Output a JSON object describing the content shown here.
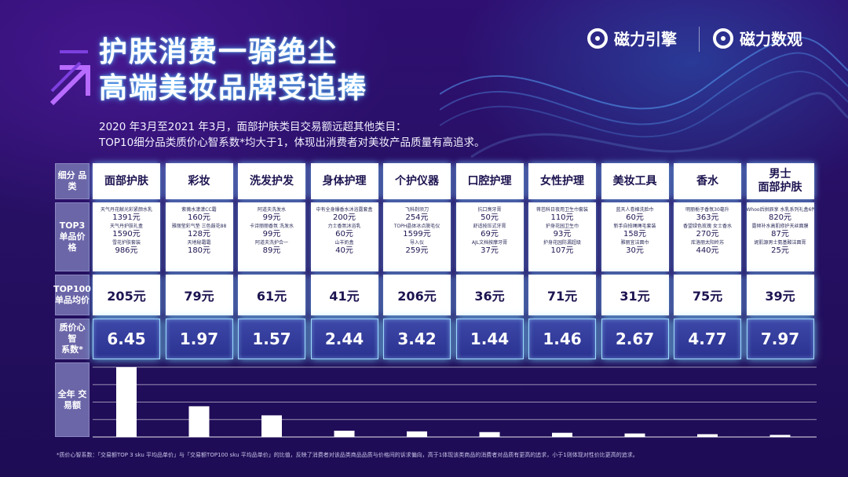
{
  "header": {
    "title_line1": "护肤消费一骑绝尘",
    "title_line2": "高端美妆品牌受追捧",
    "brand_a": "磁力引擎",
    "brand_b": "磁力数观",
    "subtitle_line1": "2020 年3月至2021 年3月，面部护肤类目交易额远超其他类目：",
    "subtitle_line2": "TOP10细分品类质价心智系数*均大于1，体现出消费者对美妆产品质量有高追求。"
  },
  "row_labels": {
    "category": "细分 品类",
    "top3": "TOP3\n单品价格",
    "top100": "TOP100\n单品均价",
    "index": "质价心智\n系数*",
    "trade": "全年 交\n易额"
  },
  "categories": [
    {
      "name": "面部护肤",
      "avg": "205元",
      "index": "6.45",
      "top3": [
        [
          "天气丹花献光彩紧颜水乳",
          "1391元"
        ],
        [
          "天气丹护肤礼盒",
          "1590元"
        ],
        [
          "雪花护肤套装",
          "986元"
        ]
      ]
    },
    {
      "name": "彩妆",
      "avg": "79元",
      "index": "1.97",
      "top3": [
        [
          "紫薇水漾漾CC霜",
          "160元"
        ],
        [
          "雅丽莹彩气垫 三色鼓花88",
          "128元"
        ],
        [
          "天地秘霜霜",
          "180元"
        ]
      ]
    },
    {
      "name": "洗发护发",
      "avg": "61元",
      "index": "1.57",
      "top3": [
        [
          "阿道夫洗发水",
          "99元"
        ],
        [
          "卡诗丽丽香氛 洗发水",
          "99元"
        ],
        [
          "阿道夫洗护合一",
          "89元"
        ]
      ]
    },
    {
      "name": "身体护理",
      "avg": "41元",
      "index": "2.44",
      "top3": [
        [
          "中有全身爆香水沐浴露套盒",
          "200元"
        ],
        [
          "力士香氛沐浴乳",
          "60元"
        ],
        [
          "山羊奶盒",
          "40元"
        ]
      ]
    },
    {
      "name": "个护仪器",
      "avg": "206元",
      "index": "3.42",
      "top3": [
        [
          "飞科剃须刀",
          "254元"
        ],
        [
          "TOPH晶体冰点脱毛仪",
          "1599元"
        ],
        [
          "导入仪",
          "259元"
        ]
      ]
    },
    {
      "name": "口腔护理",
      "avg": "36元",
      "index": "1.44",
      "top3": [
        [
          "抗口臭牙膏",
          "50元"
        ],
        [
          "舒适按压式牙膏",
          "69元"
        ],
        [
          "AJL文档按摩牙膏",
          "37元"
        ]
      ]
    },
    {
      "name": "女性护理",
      "avg": "71元",
      "index": "1.46",
      "top3": [
        [
          "蒋芭科日夜用卫生巾套装",
          "110元"
        ],
        [
          "护身花园卫生巾",
          "93元"
        ],
        [
          "护身花园防漏超级",
          "107元"
        ]
      ]
    },
    {
      "name": "美妆工具",
      "avg": "31元",
      "index": "2.67",
      "top3": [
        [
          "蓝天人卷棉洗脸巾",
          "60元"
        ],
        [
          "新手自拍绳绳毛套装",
          "158元"
        ],
        [
          "雅丽宜洁面巾",
          "30元"
        ]
      ]
    },
    {
      "name": "香水",
      "avg": "75元",
      "index": "4.77",
      "top3": [
        [
          "明丽栀子香氛30毫升",
          "363元"
        ],
        [
          "香望绿色玫瑰 女士香水",
          "270元"
        ],
        [
          "库洛丽太阳岭苏",
          "440元"
        ]
      ]
    },
    {
      "name": "男士\n面部护肤",
      "avg": "39元",
      "index": "7.97",
      "top3": [
        [
          "Whoo后拱辰享 水乳系列礼盒6件套",
          "820元"
        ],
        [
          "露倾补水高肌修护天丝面膜",
          "87元"
        ],
        [
          "妮肌源男士氨基酸洁面膏",
          "25元"
        ]
      ]
    }
  ],
  "chart_data": {
    "type": "bar",
    "categories": [
      "面部护肤",
      "彩妆",
      "洗发护发",
      "身体护理",
      "个护仪器",
      "口腔护理",
      "女性护理",
      "美妆工具",
      "香水",
      "男士面部护肤"
    ],
    "values": [
      100,
      44,
      31,
      9,
      8,
      7,
      6,
      5,
      4,
      3
    ],
    "xlabel": "",
    "ylabel": "全年 交易额",
    "ylim": [
      0,
      100
    ],
    "grid": "horizontal",
    "colors": {
      "bar": "#ffffff",
      "grid": "#ffffff"
    }
  },
  "footnote": "*质价心智系数：「交易额TOP 3 sku 平均品单价」与「交易额TOP100 sku 平均品单价」的比值，反映了消费者对该品类商品品质与价格间的诉求偏向，高于1体现该类商品的消费者对品质有更高的追求，小于1则体现对性价比更高的追求。"
}
